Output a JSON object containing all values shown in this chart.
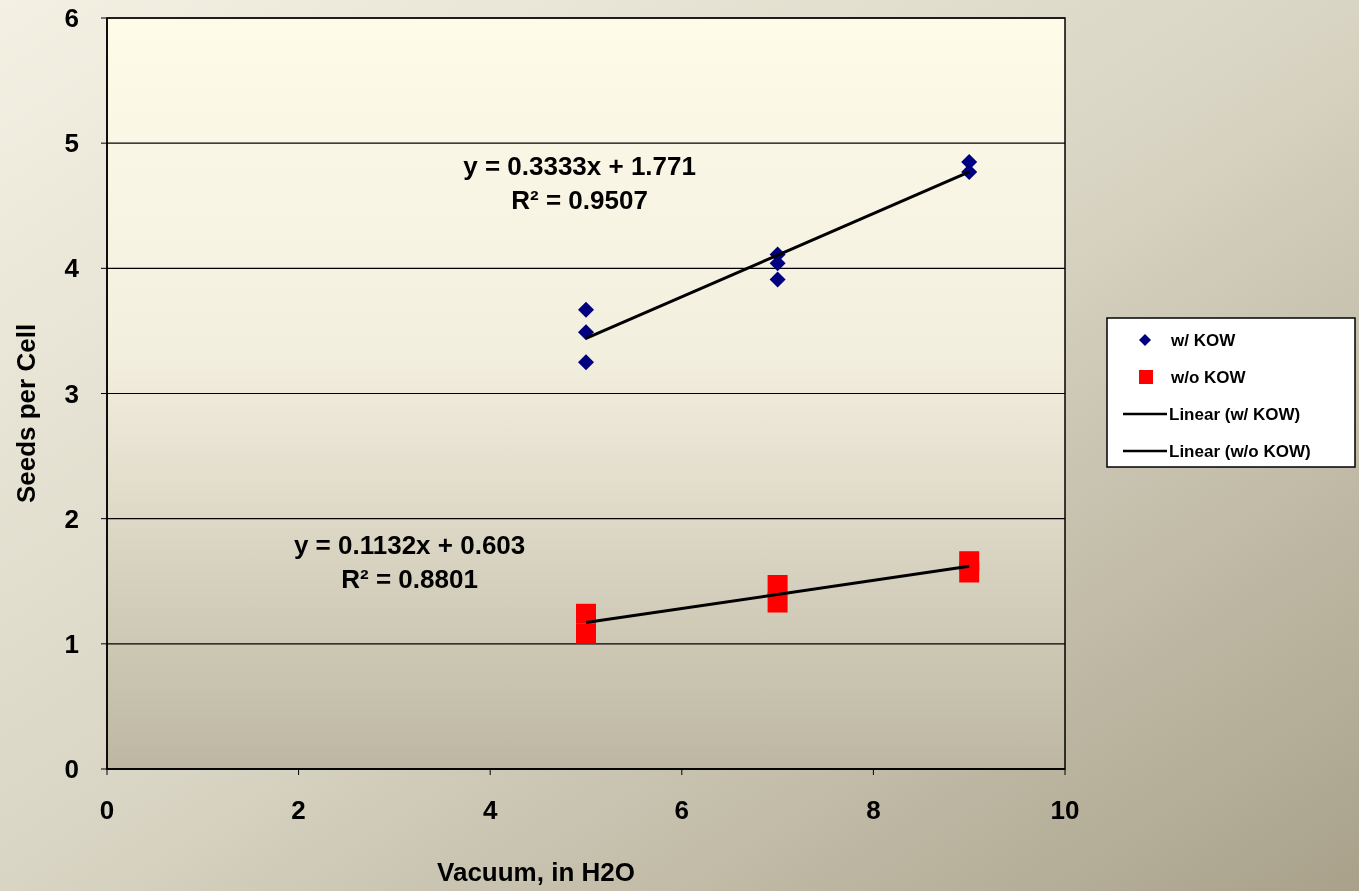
{
  "chart_data": {
    "type": "scatter",
    "xlabel": "Vacuum, in H2O",
    "ylabel": "Seeds per Cell",
    "xlim": [
      0,
      10
    ],
    "xticks": [
      0,
      2,
      4,
      6,
      8,
      10
    ],
    "ylim": [
      0,
      6
    ],
    "yticks": [
      0,
      1,
      2,
      3,
      4,
      5,
      6
    ],
    "grid": "y",
    "legend": "right",
    "series": [
      {
        "name": "w/ KOW",
        "marker": "diamond",
        "color": "#000080",
        "x": [
          5,
          5,
          5,
          7,
          7,
          7,
          9,
          9
        ],
        "values": [
          3.67,
          3.49,
          3.25,
          4.11,
          4.04,
          3.91,
          4.85,
          4.77
        ]
      },
      {
        "name": "w/o KOW",
        "marker": "square",
        "color": "#ff0000",
        "x": [
          5,
          5,
          7,
          7,
          9,
          9
        ],
        "values": [
          1.24,
          1.08,
          1.47,
          1.33,
          1.66,
          1.57
        ]
      },
      {
        "name": "Linear (w/ KOW)",
        "type": "line",
        "marker": "none",
        "color": "#000000",
        "x": [
          5,
          9
        ],
        "values": [
          3.44,
          4.77
        ]
      },
      {
        "name": "Linear (w/o KOW)",
        "type": "line",
        "marker": "none",
        "color": "#000000",
        "x": [
          5,
          9
        ],
        "values": [
          1.17,
          1.62
        ]
      }
    ],
    "annotations": [
      "y = 0.3333x + 1.771\nR² = 0.9507",
      "y = 0.1132x + 0.603\nR² = 0.8801"
    ]
  }
}
